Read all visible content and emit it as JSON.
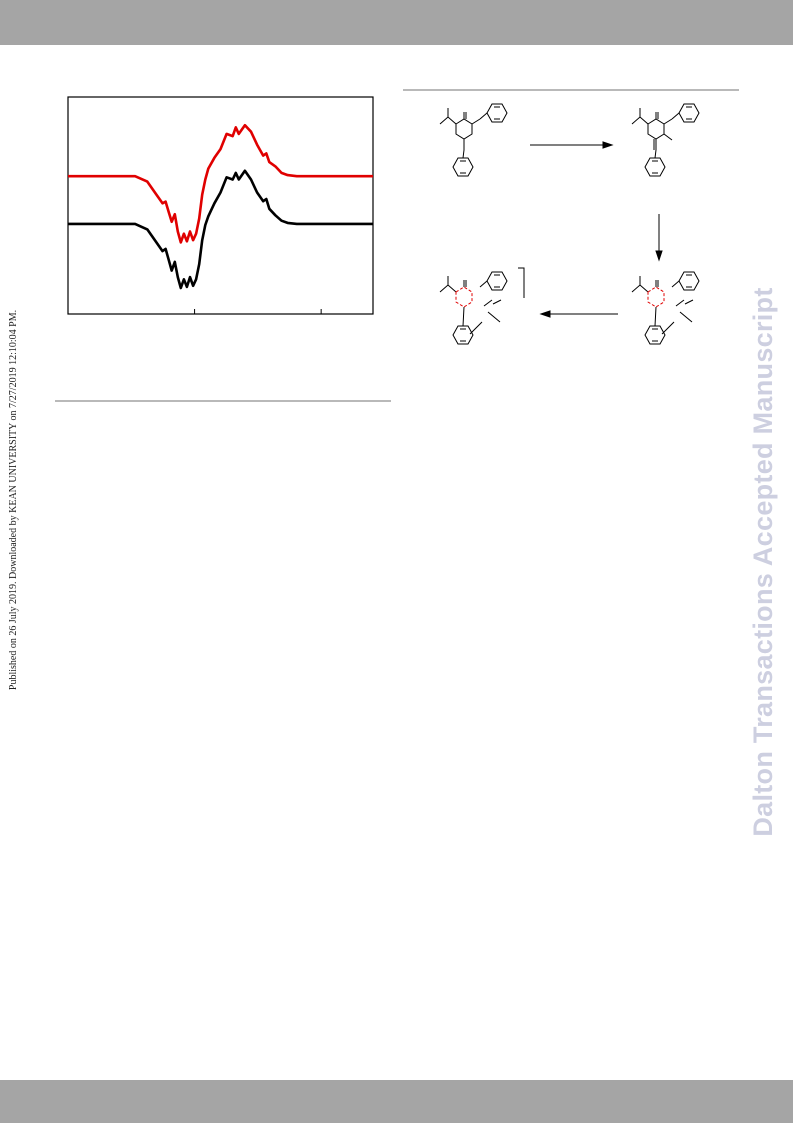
{
  "page": {
    "side_note": "Published on 26 July 2019. Downloaded by KEAN UNIVERSITY on 7/27/2019 12:10:04 PM.",
    "watermark": "Dalton Transactions Accepted Manuscript"
  },
  "colors": {
    "header_bar": "#a5a5a5",
    "watermark": "#cdcfe0",
    "spectrum_upper": "#e00000",
    "spectrum_lower": "#000000",
    "highlight": "#e00000"
  },
  "chart_data": {
    "type": "line",
    "title": "",
    "xlabel": "",
    "ylabel": "",
    "xlim": [
      0,
      100
    ],
    "ylim": [
      0,
      100
    ],
    "x_ticks": [
      0,
      41.5,
      83
    ],
    "grid": false,
    "series": [
      {
        "color": "#e00000",
        "points": [
          [
            0,
            63.5
          ],
          [
            22,
            63.5
          ],
          [
            26,
            61
          ],
          [
            29,
            55
          ],
          [
            31,
            51
          ],
          [
            32,
            51.8
          ],
          [
            33,
            47
          ],
          [
            34,
            42.5
          ],
          [
            35,
            46
          ],
          [
            36,
            38
          ],
          [
            37,
            33
          ],
          [
            38,
            37
          ],
          [
            39,
            33.5
          ],
          [
            40,
            38
          ],
          [
            41,
            34
          ],
          [
            42,
            37
          ],
          [
            43,
            44
          ],
          [
            44,
            55
          ],
          [
            45,
            62
          ],
          [
            46,
            67
          ],
          [
            48,
            72
          ],
          [
            50,
            76
          ],
          [
            52,
            83
          ],
          [
            54,
            82
          ],
          [
            55,
            86
          ],
          [
            56,
            83
          ],
          [
            58,
            87
          ],
          [
            60,
            84
          ],
          [
            62,
            78
          ],
          [
            64,
            73
          ],
          [
            65,
            74
          ],
          [
            66,
            70
          ],
          [
            68,
            68
          ],
          [
            70,
            65
          ],
          [
            72,
            64
          ],
          [
            75,
            63.5
          ],
          [
            100,
            63.5
          ]
        ]
      },
      {
        "color": "#000000",
        "points": [
          [
            0,
            41.5
          ],
          [
            22,
            41.5
          ],
          [
            26,
            39
          ],
          [
            29,
            33
          ],
          [
            31,
            29
          ],
          [
            32,
            30
          ],
          [
            33,
            25
          ],
          [
            34,
            20
          ],
          [
            35,
            24
          ],
          [
            36,
            17
          ],
          [
            37,
            12
          ],
          [
            38,
            16
          ],
          [
            39,
            12.5
          ],
          [
            40,
            17
          ],
          [
            41,
            13
          ],
          [
            42,
            16
          ],
          [
            43,
            23
          ],
          [
            44,
            34
          ],
          [
            45,
            41
          ],
          [
            46,
            45
          ],
          [
            48,
            51
          ],
          [
            50,
            56
          ],
          [
            52,
            63
          ],
          [
            54,
            62
          ],
          [
            55,
            65
          ],
          [
            56,
            62
          ],
          [
            58,
            66
          ],
          [
            60,
            62
          ],
          [
            62,
            56
          ],
          [
            64,
            52
          ],
          [
            65,
            53
          ],
          [
            66,
            48.5
          ],
          [
            68,
            45.5
          ],
          [
            70,
            43
          ],
          [
            72,
            42
          ],
          [
            75,
            41.5
          ],
          [
            100,
            41.5
          ]
        ]
      }
    ]
  },
  "scheme": {
    "type": "reaction-scheme",
    "structures": 4,
    "arrows": [
      "right",
      "down",
      "left"
    ],
    "bracket": true
  }
}
